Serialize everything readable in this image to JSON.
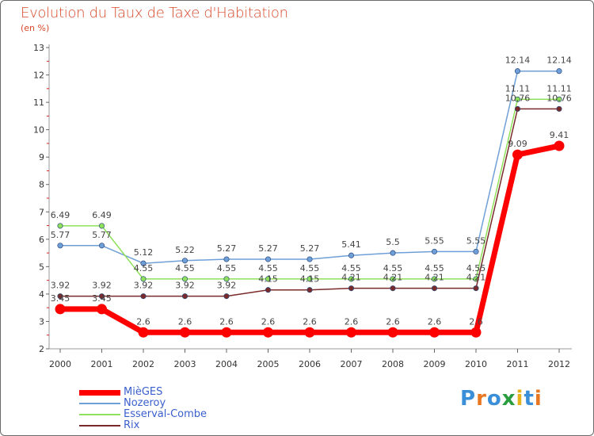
{
  "title": "Evolution du Taux de Taxe d'Habitation",
  "subtitle": "(en %)",
  "logo": {
    "text": "Proxiti",
    "letters": [
      "P",
      "r",
      "o",
      "x",
      "i",
      "t",
      "i"
    ],
    "colors": [
      "#3a8fd8",
      "#e87722",
      "#3a8fd8",
      "#2a9d3f",
      "#e8b21d",
      "#3a8fd8",
      "#e87722"
    ]
  },
  "chart_data": {
    "type": "line",
    "x": [
      "2000",
      "2001",
      "2002",
      "2003",
      "2004",
      "2005",
      "2006",
      "2007",
      "2008",
      "2009",
      "2010",
      "2011",
      "2012"
    ],
    "ylim": [
      2,
      13
    ],
    "yticks": [
      "2",
      "3",
      "4",
      "5",
      "6",
      "7",
      "8",
      "9",
      "10",
      "11",
      "12",
      "13"
    ],
    "grid": false,
    "legend": "bottom-left",
    "series": [
      {
        "name": "MièGES",
        "color": "#ff0000",
        "values": [
          3.45,
          3.45,
          2.6,
          2.6,
          2.6,
          2.6,
          2.6,
          2.6,
          2.6,
          2.6,
          2.6,
          9.09,
          9.41
        ],
        "labels": [
          "3.45",
          "3.45",
          "2.6",
          "2.6",
          "2.6",
          "2.6",
          "2.6",
          "2.6",
          "2.6",
          "2.6",
          "2.6",
          "9.09",
          "9.41"
        ]
      },
      {
        "name": "Nozeroy",
        "color": "#6f9fd8",
        "values": [
          5.77,
          5.77,
          5.12,
          5.22,
          5.27,
          5.27,
          5.27,
          5.41,
          5.5,
          5.55,
          5.55,
          12.14,
          12.14
        ],
        "labels": [
          "5.77",
          "5.77",
          "5.12",
          "5.22",
          "5.27",
          "5.27",
          "5.27",
          "5.41",
          "5.5",
          "5.55",
          "5.55",
          "12.14",
          "12.14"
        ]
      },
      {
        "name": "Esserval-Combe",
        "color": "#8fe05a",
        "values": [
          6.49,
          6.49,
          4.55,
          4.55,
          4.55,
          4.55,
          4.55,
          4.55,
          4.55,
          4.55,
          4.55,
          11.11,
          11.11
        ],
        "labels": [
          "6.49",
          "6.49",
          "4.55",
          "4.55",
          "4.55",
          "4.55",
          "4.55",
          "4.55",
          "4.55",
          "4.55",
          "4.55",
          "11.11",
          "11.11"
        ]
      },
      {
        "name": "Rix",
        "color": "#7a2a2a",
        "values": [
          3.92,
          3.92,
          3.92,
          3.92,
          3.92,
          4.15,
          4.15,
          4.21,
          4.21,
          4.21,
          4.21,
          10.76,
          10.76
        ],
        "labels": [
          "3.92",
          "3.92",
          "3.92",
          "3.92",
          "3.92",
          "4.15",
          "4.15",
          "4.21",
          "4.21",
          "4.21",
          "4.21",
          "10.76",
          "10.76"
        ]
      }
    ]
  }
}
